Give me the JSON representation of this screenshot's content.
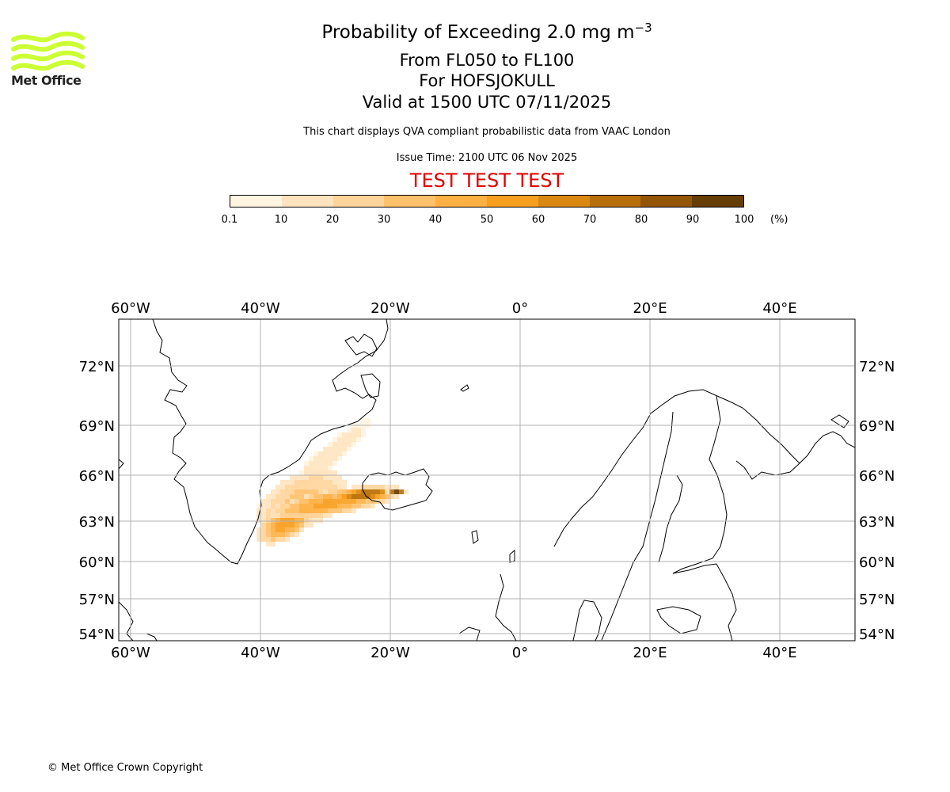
{
  "header": {
    "title": "Probability of Exceeding 2.0 mg m",
    "title_exponent": "−3",
    "levels": "From FL050 to FL100",
    "volcano": "For HOFSJOKULL",
    "valid": "Valid at 1500 UTC 07/11/2025",
    "note": "This chart displays QVA compliant probabilistic data from VAAC London",
    "issue_time": "Issue Time: 2100 UTC 06 Nov 2025",
    "test_banner": "TEST TEST TEST"
  },
  "logo": {
    "text": "Met Office",
    "color": "#ccff33"
  },
  "colorbar": {
    "ticks": [
      "0.1",
      "10",
      "20",
      "30",
      "40",
      "50",
      "60",
      "70",
      "80",
      "90",
      "100"
    ],
    "unit": "(%)",
    "colors": [
      "#fff4e0",
      "#ffe3bf",
      "#ffd49a",
      "#ffc06a",
      "#ffb042",
      "#f79f1f",
      "#d98812",
      "#b86f0a",
      "#935606",
      "#663d05"
    ]
  },
  "map": {
    "lon_labels": [
      "60°W",
      "40°W",
      "20°W",
      "0°",
      "20°E",
      "40°E"
    ],
    "lat_labels": [
      "72°N",
      "69°N",
      "66°N",
      "63°N",
      "60°N",
      "57°N",
      "54°N"
    ],
    "lon_range": [
      -62,
      51
    ],
    "lat_range": [
      53.5,
      75
    ]
  },
  "footer": {
    "copyright": "© Met Office Crown Copyright"
  }
}
